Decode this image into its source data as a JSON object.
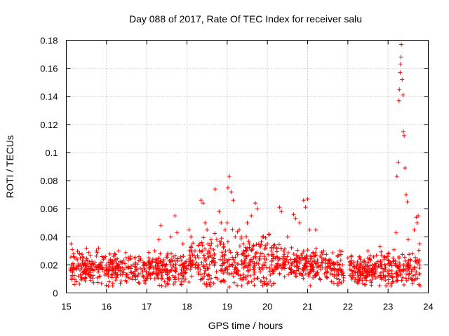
{
  "chart_data": {
    "type": "scatter",
    "title": "Day 088 of 2017, Rate Of TEC Index for receiver salu",
    "xlabel": "GPS time / hours",
    "ylabel": "ROTI / TECUs",
    "xlim": [
      15,
      24
    ],
    "ylim": [
      0,
      0.18
    ],
    "xticks": [
      "15",
      "16",
      "17",
      "18",
      "19",
      "20",
      "21",
      "22",
      "23",
      "24"
    ],
    "yticks": [
      "0",
      "0.02",
      "0.04",
      "0.06",
      "0.08",
      "0.1",
      "0.12",
      "0.14",
      "0.16",
      "0.18"
    ],
    "grid": true,
    "marker": "plus",
    "color": "#ff0000",
    "series": [
      {
        "name": "ROTI",
        "points": [
          [
            15.12,
            0.035
          ],
          [
            15.15,
            0.031
          ],
          [
            15.18,
            0.028
          ],
          [
            15.2,
            0.006
          ],
          [
            15.25,
            0.008
          ],
          [
            15.35,
            0.025
          ],
          [
            15.45,
            0.01
          ],
          [
            15.6,
            0.02
          ],
          [
            15.75,
            0.03
          ],
          [
            15.8,
            0.032
          ],
          [
            15.95,
            0.015
          ],
          [
            16.2,
            0.028
          ],
          [
            16.3,
            0.03
          ],
          [
            16.5,
            0.012
          ],
          [
            16.7,
            0.025
          ],
          [
            16.9,
            0.015
          ],
          [
            17.05,
            0.025
          ],
          [
            17.2,
            0.03
          ],
          [
            17.3,
            0.038
          ],
          [
            17.35,
            0.048
          ],
          [
            17.6,
            0.04
          ],
          [
            17.7,
            0.055
          ],
          [
            17.75,
            0.043
          ],
          [
            17.9,
            0.035
          ],
          [
            18.05,
            0.045
          ],
          [
            18.1,
            0.04
          ],
          [
            18.2,
            0.03
          ],
          [
            18.35,
            0.066
          ],
          [
            18.4,
            0.064
          ],
          [
            18.45,
            0.05
          ],
          [
            18.5,
            0.045
          ],
          [
            18.6,
            0.038
          ],
          [
            18.7,
            0.074
          ],
          [
            18.8,
            0.058
          ],
          [
            18.85,
            0.05
          ],
          [
            18.95,
            0.045
          ],
          [
            19.0,
            0.05
          ],
          [
            19.02,
            0.075
          ],
          [
            19.05,
            0.083
          ],
          [
            19.1,
            0.072
          ],
          [
            19.15,
            0.066
          ],
          [
            19.2,
            0.04
          ],
          [
            19.3,
            0.045
          ],
          [
            19.4,
            0.035
          ],
          [
            19.5,
            0.05
          ],
          [
            19.6,
            0.055
          ],
          [
            19.7,
            0.064
          ],
          [
            19.75,
            0.06
          ],
          [
            19.9,
            0.04
          ],
          [
            20.0,
            0.035
          ],
          [
            20.1,
            0.03
          ],
          [
            20.3,
            0.061
          ],
          [
            20.35,
            0.058
          ],
          [
            20.5,
            0.04
          ],
          [
            20.65,
            0.056
          ],
          [
            20.7,
            0.053
          ],
          [
            20.8,
            0.05
          ],
          [
            20.9,
            0.066
          ],
          [
            20.95,
            0.061
          ],
          [
            21.0,
            0.067
          ],
          [
            21.05,
            0.045
          ],
          [
            21.2,
            0.045
          ],
          [
            21.4,
            0.03
          ],
          [
            21.6,
            0.022
          ],
          [
            21.8,
            0.03
          ],
          [
            22.0,
            0.025
          ],
          [
            22.3,
            0.025
          ],
          [
            22.5,
            0.03
          ],
          [
            22.8,
            0.033
          ],
          [
            22.9,
            0.025
          ],
          [
            23.05,
            0.022
          ],
          [
            23.2,
            0.043
          ],
          [
            23.22,
            0.083
          ],
          [
            23.25,
            0.093
          ],
          [
            23.27,
            0.137
          ],
          [
            23.28,
            0.145
          ],
          [
            23.3,
            0.157
          ],
          [
            23.31,
            0.163
          ],
          [
            23.32,
            0.168
          ],
          [
            23.33,
            0.177
          ],
          [
            23.35,
            0.152
          ],
          [
            23.37,
            0.141
          ],
          [
            23.38,
            0.115
          ],
          [
            23.4,
            0.112
          ],
          [
            23.42,
            0.089
          ],
          [
            23.45,
            0.07
          ],
          [
            23.48,
            0.065
          ],
          [
            23.5,
            0.038
          ],
          [
            23.6,
            0.028
          ],
          [
            23.65,
            0.045
          ],
          [
            23.7,
            0.054
          ],
          [
            23.75,
            0.055
          ],
          [
            23.72,
            0.05
          ],
          [
            23.78,
            0.035
          ],
          [
            23.7,
            0.015
          ]
        ]
      }
    ]
  }
}
